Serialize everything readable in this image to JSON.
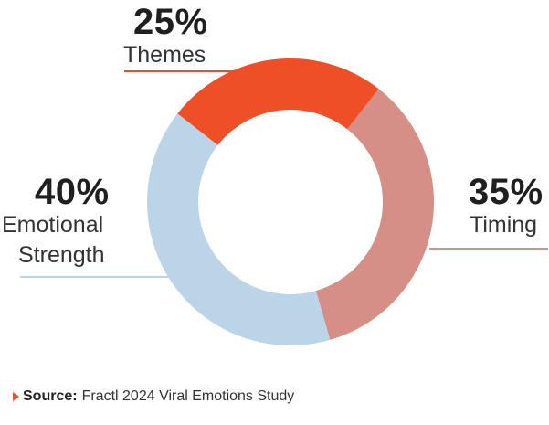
{
  "chart_data": {
    "type": "pie",
    "donut": true,
    "start_angle_deg": -52,
    "segments": [
      {
        "name": "Themes",
        "value": 25,
        "label": "25%",
        "color": "#ef4f26"
      },
      {
        "name": "Timing",
        "value": 35,
        "label": "35%",
        "color": "#d58f86"
      },
      {
        "name": "Emotional Strength",
        "value": 40,
        "label": "40%",
        "label_lines": [
          "Emotional",
          "Strength"
        ],
        "color": "#bcd4e8"
      }
    ]
  },
  "source": {
    "prefix": "Source:",
    "text": "Fractl 2024 Viral Emotions Study"
  }
}
